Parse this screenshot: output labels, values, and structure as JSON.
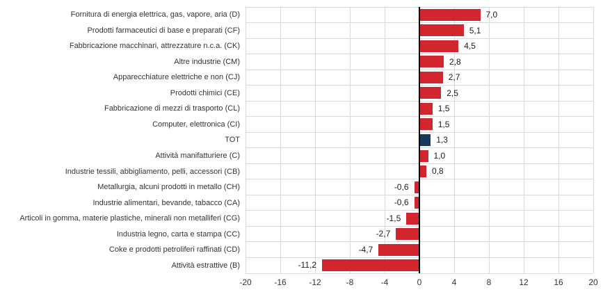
{
  "chart_data": {
    "type": "bar",
    "orientation": "horizontal",
    "title": "",
    "xlabel": "",
    "ylabel": "",
    "xlim": [
      -20,
      20
    ],
    "x_ticks": [
      -20,
      -16,
      -12,
      -8,
      -4,
      0,
      4,
      8,
      12,
      16,
      20
    ],
    "x_tick_labels": [
      "-20",
      "-16",
      "-12",
      "-8",
      "-4",
      "0",
      "4",
      "8",
      "12",
      "16",
      "20"
    ],
    "grid": true,
    "legend": "none",
    "decimal_separator": ",",
    "series": [
      {
        "label": "Fornitura di energia elettrica, gas, vapore, aria (D)",
        "value": 7.0,
        "display": "7,0",
        "color": "red"
      },
      {
        "label": "Prodotti farmaceutici di base e preparati (CF)",
        "value": 5.1,
        "display": "5,1",
        "color": "red"
      },
      {
        "label": "Fabbricazione macchinari, attrezzature n.c.a. (CK)",
        "value": 4.5,
        "display": "4,5",
        "color": "red"
      },
      {
        "label": "Altre industrie (CM)",
        "value": 2.8,
        "display": "2,8",
        "color": "red"
      },
      {
        "label": "Apparecchiature elettriche e non (CJ)",
        "value": 2.7,
        "display": "2,7",
        "color": "red"
      },
      {
        "label": "Prodotti chimici (CE)",
        "value": 2.5,
        "display": "2,5",
        "color": "red"
      },
      {
        "label": "Fabbricazione di mezzi di trasporto (CL)",
        "value": 1.5,
        "display": "1,5",
        "color": "red"
      },
      {
        "label": "Computer, elettronica (CI)",
        "value": 1.5,
        "display": "1,5",
        "color": "red"
      },
      {
        "label": "TOT",
        "value": 1.3,
        "display": "1,3",
        "color": "navy"
      },
      {
        "label": "Attività manifatturiere (C)",
        "value": 1.0,
        "display": "1,0",
        "color": "red"
      },
      {
        "label": "Industrie tessili, abbigliamento, pelli, accessori (CB)",
        "value": 0.8,
        "display": "0,8",
        "color": "red"
      },
      {
        "label": "Metallurgia, alcuni prodotti in metallo (CH)",
        "value": -0.6,
        "display": "-0,6",
        "color": "red"
      },
      {
        "label": "Industrie alimentari, bevande, tabacco (CA)",
        "value": -0.6,
        "display": "-0,6",
        "color": "red"
      },
      {
        "label": "Articoli in gomma, materie plastiche, minerali non metalliferi (CG)",
        "value": -1.5,
        "display": "-1,5",
        "color": "red"
      },
      {
        "label": "Industria legno, carta e stampa (CC)",
        "value": -2.7,
        "display": "-2,7",
        "color": "red"
      },
      {
        "label": "Coke e prodotti petroliferi raffinati (CD)",
        "value": -4.7,
        "display": "-4,7",
        "color": "red"
      },
      {
        "label": "Attività estrattive (B)",
        "value": -11.2,
        "display": "-11,2",
        "color": "red"
      }
    ],
    "colors": {
      "red": "#D2262F",
      "navy": "#163A5E",
      "gridline": "#D9D9D9",
      "zero_axis": "#000000",
      "text": "#333333"
    }
  }
}
